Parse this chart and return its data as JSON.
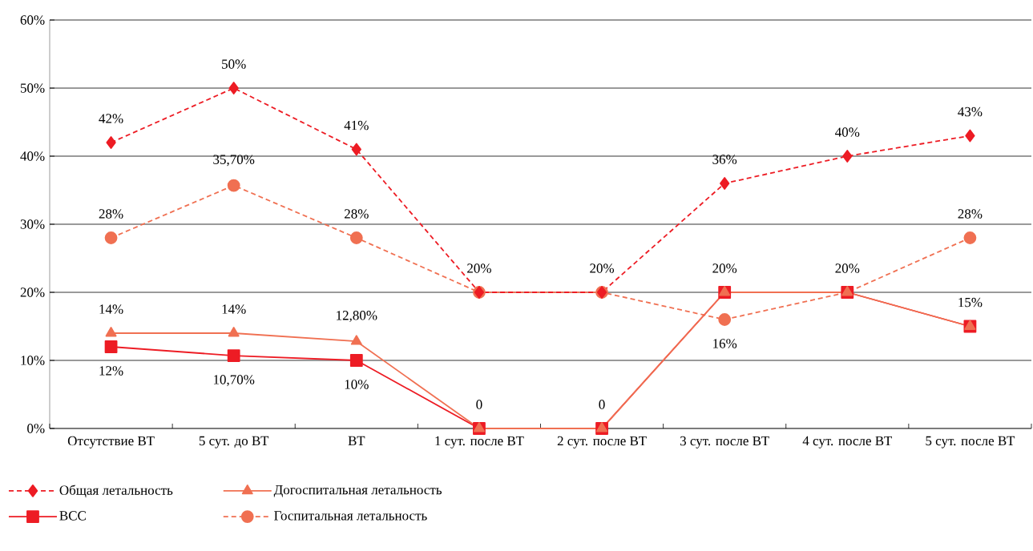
{
  "chart_data": {
    "type": "line",
    "categories": [
      "Отсутствие ВТ",
      "5 сут. до ВТ",
      "ВТ",
      "1 сут. после ВТ",
      "2 сут. после ВТ",
      "3 сут. после ВТ",
      "4 сут. после ВТ",
      "5 сут. после ВТ"
    ],
    "series": [
      {
        "name": "Общая летальность",
        "color": "#ed1c24",
        "marker": "diamond",
        "line_style": "dashed",
        "values": [
          42,
          50,
          41,
          20,
          20,
          36,
          40,
          43
        ],
        "value_labels": [
          "42%",
          "50%",
          "41%",
          "20%",
          "20%",
          "36%",
          "40%",
          "43%"
        ]
      },
      {
        "name": "Догоспитальная летальность",
        "color": "#f07052",
        "marker": "triangle",
        "line_style": "solid",
        "values": [
          14,
          14,
          12.8,
          0,
          0,
          20,
          20,
          15
        ],
        "value_labels": [
          "14%",
          "14%",
          "12,80%",
          "0",
          "0",
          "20%",
          "20%",
          "15%"
        ]
      },
      {
        "name": "ВСС",
        "color": "#ed1c24",
        "marker": "square",
        "line_style": "solid",
        "values": [
          12,
          10.7,
          10,
          0,
          0,
          20,
          20,
          15
        ],
        "value_labels": [
          "12%",
          "10,70%",
          "10%",
          null,
          null,
          null,
          null,
          null
        ]
      },
      {
        "name": "Госпитальная летальность",
        "color": "#f07052",
        "marker": "circle",
        "line_style": "dashed",
        "values": [
          28,
          35.7,
          28,
          20,
          20,
          16,
          20,
          28
        ],
        "value_labels": [
          "28%",
          "35,70%",
          "28%",
          null,
          null,
          "16%",
          null,
          "28%"
        ]
      }
    ],
    "ylim": [
      0,
      60
    ],
    "yticks": [
      {
        "value": 0,
        "label": "0%"
      },
      {
        "value": 10,
        "label": "10%"
      },
      {
        "value": 20,
        "label": "20%"
      },
      {
        "value": 30,
        "label": "30%"
      },
      {
        "value": 40,
        "label": "40%"
      },
      {
        "value": 50,
        "label": "50%"
      },
      {
        "value": 60,
        "label": "60%"
      }
    ],
    "grid": "y",
    "legend": "bottom"
  }
}
